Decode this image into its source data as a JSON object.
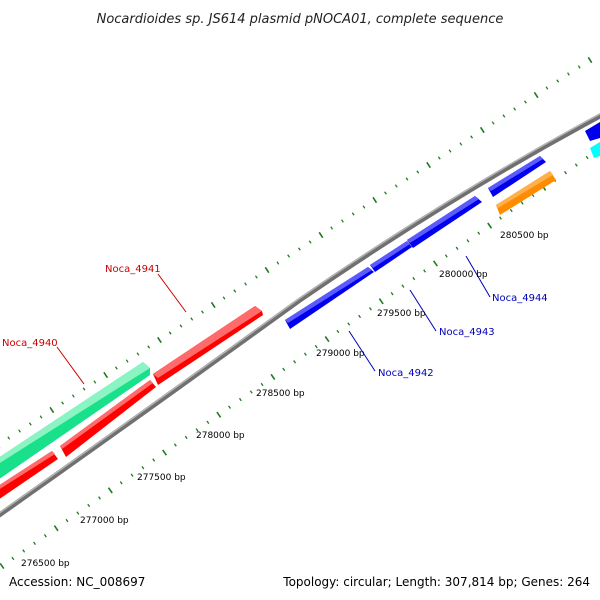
{
  "title": "Nocardioides sp. JS614 plasmid pNOCA01, complete sequence",
  "footer": {
    "accession": "Accession: NC_008697",
    "summary": "Topology: circular; Length: 307,814 bp; Genes: 264"
  },
  "colors": {
    "backbone": "#7f7f7f",
    "ticks": "#1e7a1e",
    "red_label": "#cc0000",
    "blue_label": "#0000bb"
  },
  "tick_labels": [
    "276500 bp",
    "277000 bp",
    "277500 bp",
    "278000 bp",
    "278500 bp",
    "279000 bp",
    "279500 bp",
    "280000 bp",
    "280500 bp"
  ],
  "gene_labels": {
    "noca_4940": "Noca_4940",
    "noca_4941": "Noca_4941",
    "noca_4942": "Noca_4942",
    "noca_4943": "Noca_4943",
    "noca_4944": "Noca_4944"
  }
}
